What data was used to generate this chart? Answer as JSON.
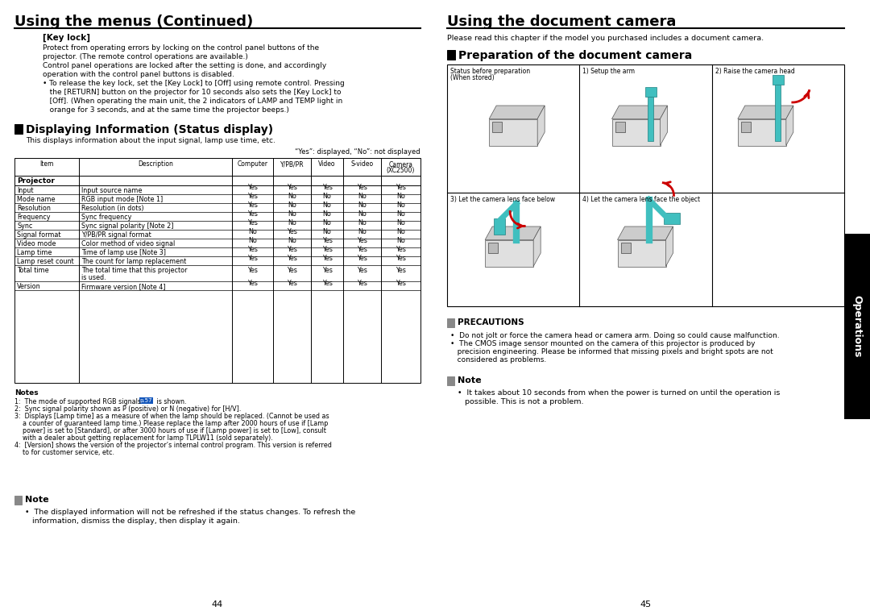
{
  "bg_color": "#ffffff",
  "page_width": 10.8,
  "page_height": 7.63,
  "left_title": "Using the menus (Continued)",
  "right_title": "Using the document camera",
  "left_page_num": "44",
  "right_page_num": "45",
  "key_lock_body_lines": [
    "Protect from operating errors by locking on the control panel buttons of the",
    "projector. (The remote control operations are available.)",
    "Control panel operations are locked after the setting is done, and accordingly",
    "operation with the control panel buttons is disabled.",
    "• To release the key lock, set the [Key Lock] to [Off] using remote control. Pressing",
    "   the [RETURN] button on the projector for 10 seconds also sets the [Key Lock] to",
    "   [Off]. (When operating the main unit, the 2 indicators of LAMP and TEMP light in",
    "   orange for 3 seconds, and at the same time the projector beeps.)"
  ],
  "disp_info_subtext": "This displays information about the input signal, lamp use time, etc.",
  "table_note_text": "“Yes”: displayed, “No”: not displayed",
  "table_rows": [
    [
      "Input",
      "Input source name",
      "Yes",
      "Yes",
      "Yes",
      "Yes",
      "Yes"
    ],
    [
      "Mode name",
      "RGB input mode [Note 1]",
      "Yes",
      "No",
      "No",
      "No",
      "No"
    ],
    [
      "Resolution",
      "Resolution (in dots)",
      "Yes",
      "No",
      "No",
      "No",
      "No"
    ],
    [
      "Frequency",
      "Sync frequency",
      "Yes",
      "No",
      "No",
      "No",
      "No"
    ],
    [
      "Sync",
      "Sync signal polarity [Note 2]",
      "Yes",
      "No",
      "No",
      "No",
      "No"
    ],
    [
      "Signal format",
      "Y/PB/PR signal format",
      "No",
      "Yes",
      "No",
      "No",
      "No"
    ],
    [
      "Video mode",
      "Color method of video signal",
      "No",
      "No",
      "Yes",
      "Yes",
      "No"
    ],
    [
      "Lamp time",
      "Time of lamp use [Note 3]",
      "Yes",
      "Yes",
      "Yes",
      "Yes",
      "Yes"
    ],
    [
      "Lamp reset count",
      "The count for lamp replacement",
      "Yes",
      "Yes",
      "Yes",
      "Yes",
      "Yes"
    ],
    [
      "Total time",
      "The total time that this projector|is used.",
      "Yes",
      "Yes",
      "Yes",
      "Yes",
      "Yes"
    ],
    [
      "Version",
      "Firmware version [Note 4]",
      "Yes",
      "Yes",
      "Yes",
      "Yes",
      "Yes"
    ]
  ],
  "note_lines_1": "1:  The mode of supported RGB signals",
  "note_lines_rest": [
    "2:  Sync signal polarity shown as P (positive) or N (negative) for [H/V].",
    "3:  Displays [Lamp time] as a measure of when the lamp should be replaced. (Cannot be used as",
    "    a counter of guaranteed lamp time.) Please replace the lamp after 2000 hours of use if [Lamp",
    "    power] is set to [Standard], or after 3000 hours of use if [Lamp power] is set to [Low], consult",
    "    with a dealer about getting replacement for lamp TLPLW11 (sold separately).",
    "4:  [Version] shows the version of the projector’s internal control program. This version is referred",
    "    to for customer service, etc."
  ],
  "right_intro": "Please read this chapter if the model you purchased includes a document camera.",
  "prep_top_labels": [
    "Status before preparation\n(When stored)",
    "1) Setup the arm",
    "2) Raise the camera head"
  ],
  "prep_bot_labels": [
    "3) Let the camera lens face below",
    "4) Let the camera lens face the object"
  ],
  "precautions_items": [
    "•  Do not jolt or force the camera head or camera arm. Doing so could cause malfunction.",
    "•  The CMOS image sensor mounted on the camera of this projector is produced by",
    "   precision engineering. Please be informed that missing pixels and bright spots are not",
    "   considered as problems."
  ],
  "right_note_lines": [
    "•  It takes about 10 seconds from when the power is turned on until the operation is",
    "   possible. This is not a problem."
  ],
  "operations_tab_text": "Operations",
  "teal_color": "#40BFBF",
  "red_color": "#CC0000"
}
